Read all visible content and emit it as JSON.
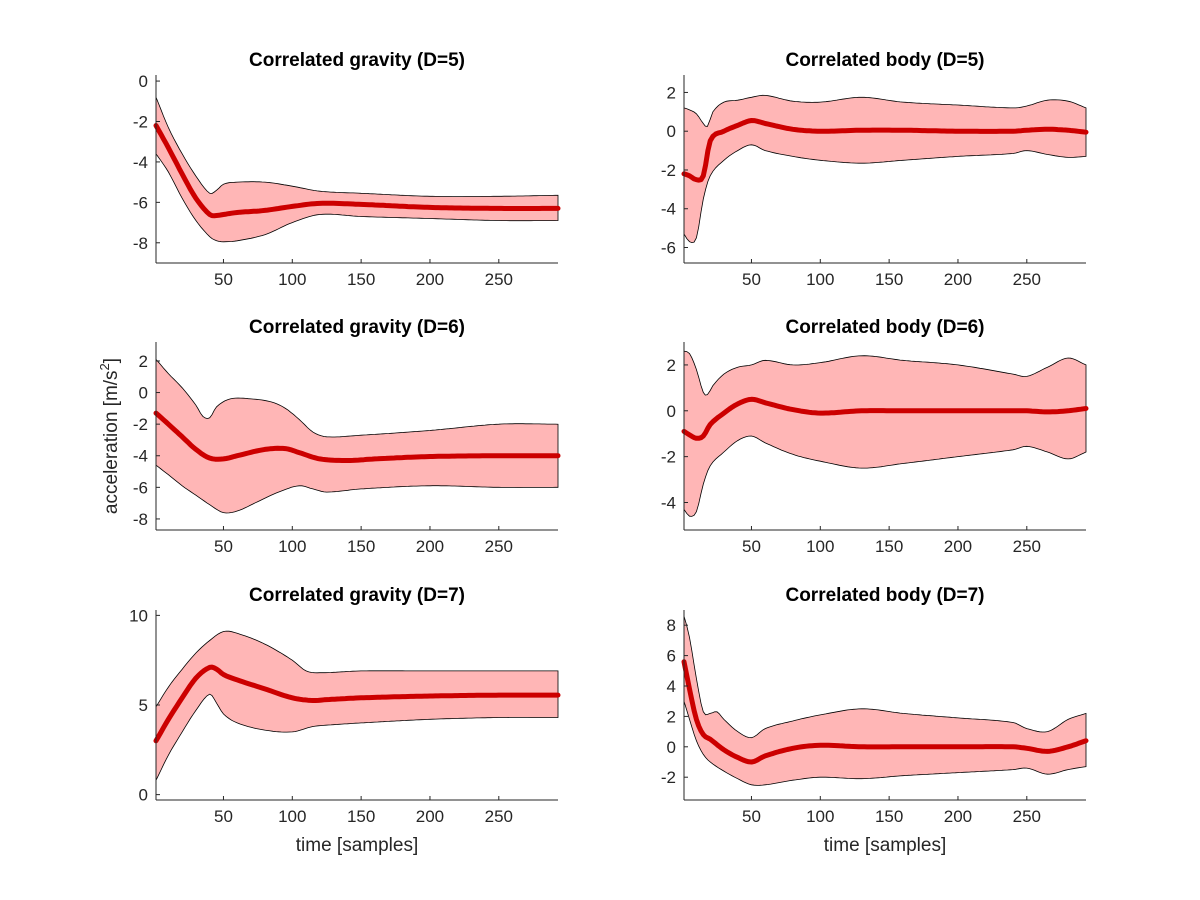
{
  "figure": {
    "ylabel_base": "acceleration [m/s",
    "ylabel_sup": "2",
    "ylabel_close": "]"
  },
  "colors": {
    "mean_line": "#cc0000",
    "band_fill": "#ffb6b6",
    "band_edge": "#000000"
  },
  "chart_data": [
    {
      "type": "line",
      "title": "Correlated gravity (D=5)",
      "xlabel": "",
      "ylabel": "",
      "xlim": [
        1,
        293
      ],
      "ylim": [
        -9,
        0.3
      ],
      "xticks": [
        50,
        100,
        150,
        200,
        250
      ],
      "yticks": [
        -8,
        -6,
        -4,
        -2,
        0
      ],
      "series": [
        {
          "name": "mean",
          "x": [
            1,
            10,
            20,
            30,
            40,
            45,
            50,
            60,
            80,
            100,
            120,
            150,
            200,
            250,
            293
          ],
          "values": [
            -2.2,
            -3.3,
            -4.6,
            -5.8,
            -6.6,
            -6.65,
            -6.6,
            -6.5,
            -6.4,
            -6.2,
            -6.05,
            -6.1,
            -6.25,
            -6.3,
            -6.3
          ]
        },
        {
          "name": "upper",
          "x": [
            1,
            10,
            20,
            30,
            40,
            45,
            50,
            60,
            80,
            100,
            120,
            150,
            200,
            250,
            293
          ],
          "values": [
            -0.8,
            -2.3,
            -3.6,
            -4.7,
            -5.55,
            -5.4,
            -5.1,
            -5.0,
            -5.0,
            -5.2,
            -5.45,
            -5.55,
            -5.7,
            -5.7,
            -5.65
          ]
        },
        {
          "name": "lower",
          "x": [
            1,
            10,
            20,
            30,
            40,
            45,
            50,
            60,
            80,
            100,
            120,
            150,
            200,
            250,
            293
          ],
          "values": [
            -3.6,
            -4.5,
            -5.8,
            -6.9,
            -7.7,
            -7.9,
            -7.95,
            -7.9,
            -7.6,
            -7.0,
            -6.6,
            -6.7,
            -6.8,
            -6.9,
            -6.9
          ]
        }
      ]
    },
    {
      "type": "line",
      "title": "Correlated body (D=5)",
      "xlabel": "",
      "ylabel": "",
      "xlim": [
        1,
        293
      ],
      "ylim": [
        -6.8,
        2.9
      ],
      "xticks": [
        50,
        100,
        150,
        200,
        250
      ],
      "yticks": [
        -6,
        -4,
        -2,
        0,
        2
      ],
      "series": [
        {
          "name": "mean",
          "x": [
            1,
            5,
            10,
            15,
            20,
            30,
            40,
            50,
            60,
            80,
            100,
            130,
            160,
            200,
            240,
            250,
            265,
            280,
            293
          ],
          "values": [
            -2.2,
            -2.3,
            -2.5,
            -2.3,
            -0.5,
            0.0,
            0.3,
            0.55,
            0.4,
            0.1,
            0.0,
            0.05,
            0.05,
            0.0,
            0.0,
            0.05,
            0.1,
            0.05,
            -0.05
          ]
        },
        {
          "name": "upper",
          "x": [
            1,
            5,
            10,
            15,
            18,
            22,
            30,
            40,
            50,
            60,
            80,
            100,
            130,
            160,
            200,
            240,
            250,
            265,
            280,
            293
          ],
          "values": [
            1.2,
            1.1,
            0.9,
            0.4,
            0.25,
            1.0,
            1.5,
            1.6,
            1.75,
            1.85,
            1.55,
            1.5,
            1.75,
            1.5,
            1.35,
            1.2,
            1.3,
            1.6,
            1.55,
            1.2
          ]
        },
        {
          "name": "lower",
          "x": [
            1,
            5,
            10,
            15,
            20,
            30,
            40,
            50,
            60,
            80,
            100,
            130,
            160,
            200,
            240,
            250,
            265,
            280,
            293
          ],
          "values": [
            -5.3,
            -5.7,
            -5.5,
            -3.5,
            -2.3,
            -1.5,
            -1.0,
            -0.7,
            -1.0,
            -1.3,
            -1.5,
            -1.65,
            -1.5,
            -1.3,
            -1.15,
            -1.0,
            -1.2,
            -1.35,
            -1.3
          ]
        }
      ]
    },
    {
      "type": "line",
      "title": "Correlated gravity (D=6)",
      "xlabel": "",
      "ylabel": "acceleration [m/s2]",
      "xlim": [
        1,
        293
      ],
      "ylim": [
        -8.7,
        3.2
      ],
      "xticks": [
        50,
        100,
        150,
        200,
        250
      ],
      "yticks": [
        -8,
        -6,
        -4,
        -2,
        0,
        2
      ],
      "series": [
        {
          "name": "mean",
          "x": [
            1,
            10,
            20,
            30,
            40,
            50,
            60,
            80,
            95,
            105,
            120,
            140,
            160,
            200,
            250,
            293
          ],
          "values": [
            -1.3,
            -2.0,
            -2.8,
            -3.6,
            -4.15,
            -4.2,
            -4.0,
            -3.6,
            -3.55,
            -3.8,
            -4.2,
            -4.3,
            -4.2,
            -4.05,
            -4.0,
            -4.0
          ]
        },
        {
          "name": "upper",
          "x": [
            1,
            10,
            20,
            30,
            35,
            40,
            45,
            55,
            70,
            85,
            95,
            105,
            115,
            125,
            150,
            200,
            250,
            293
          ],
          "values": [
            2.1,
            1.2,
            0.3,
            -0.8,
            -1.5,
            -1.6,
            -0.9,
            -0.4,
            -0.4,
            -0.6,
            -1.0,
            -1.7,
            -2.5,
            -2.8,
            -2.7,
            -2.4,
            -2.0,
            -2.0
          ]
        },
        {
          "name": "lower",
          "x": [
            1,
            10,
            20,
            30,
            40,
            50,
            60,
            75,
            90,
            105,
            115,
            125,
            150,
            200,
            250,
            293
          ],
          "values": [
            -4.6,
            -5.2,
            -5.9,
            -6.5,
            -7.1,
            -7.6,
            -7.5,
            -6.9,
            -6.3,
            -5.9,
            -6.1,
            -6.3,
            -6.1,
            -5.9,
            -6.0,
            -6.0
          ]
        }
      ]
    },
    {
      "type": "line",
      "title": "Correlated body (D=6)",
      "xlabel": "",
      "ylabel": "",
      "xlim": [
        1,
        293
      ],
      "ylim": [
        -5.2,
        3.0
      ],
      "xticks": [
        50,
        100,
        150,
        200,
        250
      ],
      "yticks": [
        -4,
        -2,
        0,
        2
      ],
      "series": [
        {
          "name": "mean",
          "x": [
            1,
            5,
            10,
            15,
            20,
            30,
            40,
            50,
            60,
            80,
            100,
            130,
            160,
            200,
            240,
            250,
            265,
            280,
            293
          ],
          "values": [
            -0.9,
            -1.05,
            -1.2,
            -1.1,
            -0.6,
            -0.1,
            0.3,
            0.5,
            0.35,
            0.05,
            -0.1,
            0.0,
            0.0,
            0.0,
            0.0,
            0.0,
            -0.05,
            0.0,
            0.1
          ]
        },
        {
          "name": "upper",
          "x": [
            1,
            5,
            10,
            15,
            18,
            22,
            30,
            40,
            50,
            60,
            80,
            100,
            130,
            160,
            200,
            240,
            250,
            265,
            280,
            293
          ],
          "values": [
            2.6,
            2.5,
            1.8,
            0.8,
            0.7,
            1.1,
            1.6,
            1.9,
            2.0,
            2.2,
            2.0,
            2.1,
            2.4,
            2.2,
            2.0,
            1.6,
            1.5,
            1.9,
            2.3,
            2.0
          ]
        },
        {
          "name": "lower",
          "x": [
            1,
            5,
            10,
            15,
            20,
            30,
            40,
            50,
            60,
            80,
            100,
            130,
            160,
            200,
            240,
            250,
            265,
            280,
            293
          ],
          "values": [
            -4.3,
            -4.6,
            -4.4,
            -3.2,
            -2.4,
            -1.8,
            -1.3,
            -1.1,
            -1.4,
            -1.9,
            -2.2,
            -2.5,
            -2.3,
            -2.0,
            -1.7,
            -1.55,
            -1.8,
            -2.1,
            -1.8
          ]
        }
      ]
    },
    {
      "type": "line",
      "title": "Correlated gravity (D=7)",
      "xlabel": "time [samples]",
      "ylabel": "",
      "xlim": [
        1,
        293
      ],
      "ylim": [
        -0.3,
        10.3
      ],
      "xticks": [
        50,
        100,
        150,
        200,
        250
      ],
      "yticks": [
        0,
        5,
        10
      ],
      "series": [
        {
          "name": "mean",
          "x": [
            1,
            10,
            20,
            30,
            40,
            45,
            50,
            60,
            80,
            100,
            115,
            125,
            150,
            200,
            250,
            293
          ],
          "values": [
            3.0,
            4.2,
            5.4,
            6.5,
            7.1,
            7.0,
            6.7,
            6.4,
            5.9,
            5.4,
            5.25,
            5.3,
            5.4,
            5.5,
            5.55,
            5.55
          ]
        },
        {
          "name": "upper",
          "x": [
            1,
            10,
            20,
            30,
            40,
            50,
            60,
            80,
            100,
            110,
            120,
            150,
            200,
            250,
            293
          ],
          "values": [
            4.9,
            6.0,
            7.0,
            7.9,
            8.6,
            9.1,
            9.0,
            8.4,
            7.5,
            6.9,
            6.8,
            6.9,
            6.9,
            6.9,
            6.9
          ]
        },
        {
          "name": "lower",
          "x": [
            1,
            10,
            20,
            30,
            40,
            45,
            50,
            60,
            80,
            100,
            115,
            130,
            150,
            200,
            250,
            293
          ],
          "values": [
            0.8,
            2.2,
            3.5,
            4.7,
            5.6,
            5.1,
            4.5,
            4.0,
            3.6,
            3.5,
            3.8,
            3.9,
            4.0,
            4.2,
            4.3,
            4.3
          ]
        }
      ]
    },
    {
      "type": "line",
      "title": "Correlated body (D=7)",
      "xlabel": "time [samples]",
      "ylabel": "",
      "xlim": [
        1,
        293
      ],
      "ylim": [
        -3.5,
        9.0
      ],
      "xticks": [
        50,
        100,
        150,
        200,
        250
      ],
      "yticks": [
        -2,
        0,
        2,
        4,
        6,
        8
      ],
      "series": [
        {
          "name": "mean",
          "x": [
            1,
            5,
            10,
            15,
            20,
            30,
            40,
            50,
            60,
            80,
            100,
            130,
            160,
            200,
            240,
            250,
            265,
            280,
            293
          ],
          "values": [
            5.6,
            3.8,
            1.8,
            0.8,
            0.5,
            -0.2,
            -0.7,
            -1.0,
            -0.6,
            -0.1,
            0.1,
            0.0,
            0.0,
            0.0,
            0.0,
            -0.1,
            -0.3,
            0.0,
            0.4
          ]
        },
        {
          "name": "upper",
          "x": [
            1,
            5,
            10,
            15,
            20,
            25,
            30,
            40,
            50,
            60,
            80,
            100,
            130,
            160,
            200,
            240,
            250,
            265,
            280,
            293
          ],
          "values": [
            8.6,
            7.2,
            4.5,
            2.3,
            2.2,
            2.3,
            1.8,
            1.0,
            0.6,
            1.2,
            1.7,
            2.1,
            2.5,
            2.2,
            1.9,
            1.6,
            1.2,
            1.0,
            1.8,
            2.2
          ]
        },
        {
          "name": "lower",
          "x": [
            1,
            5,
            10,
            15,
            20,
            30,
            40,
            50,
            60,
            80,
            100,
            130,
            160,
            200,
            240,
            250,
            265,
            280,
            293
          ],
          "values": [
            3.0,
            1.8,
            0.4,
            -0.5,
            -1.0,
            -1.6,
            -2.1,
            -2.5,
            -2.5,
            -2.2,
            -2.0,
            -2.1,
            -1.9,
            -1.7,
            -1.5,
            -1.4,
            -1.8,
            -1.5,
            -1.3
          ]
        }
      ]
    }
  ]
}
